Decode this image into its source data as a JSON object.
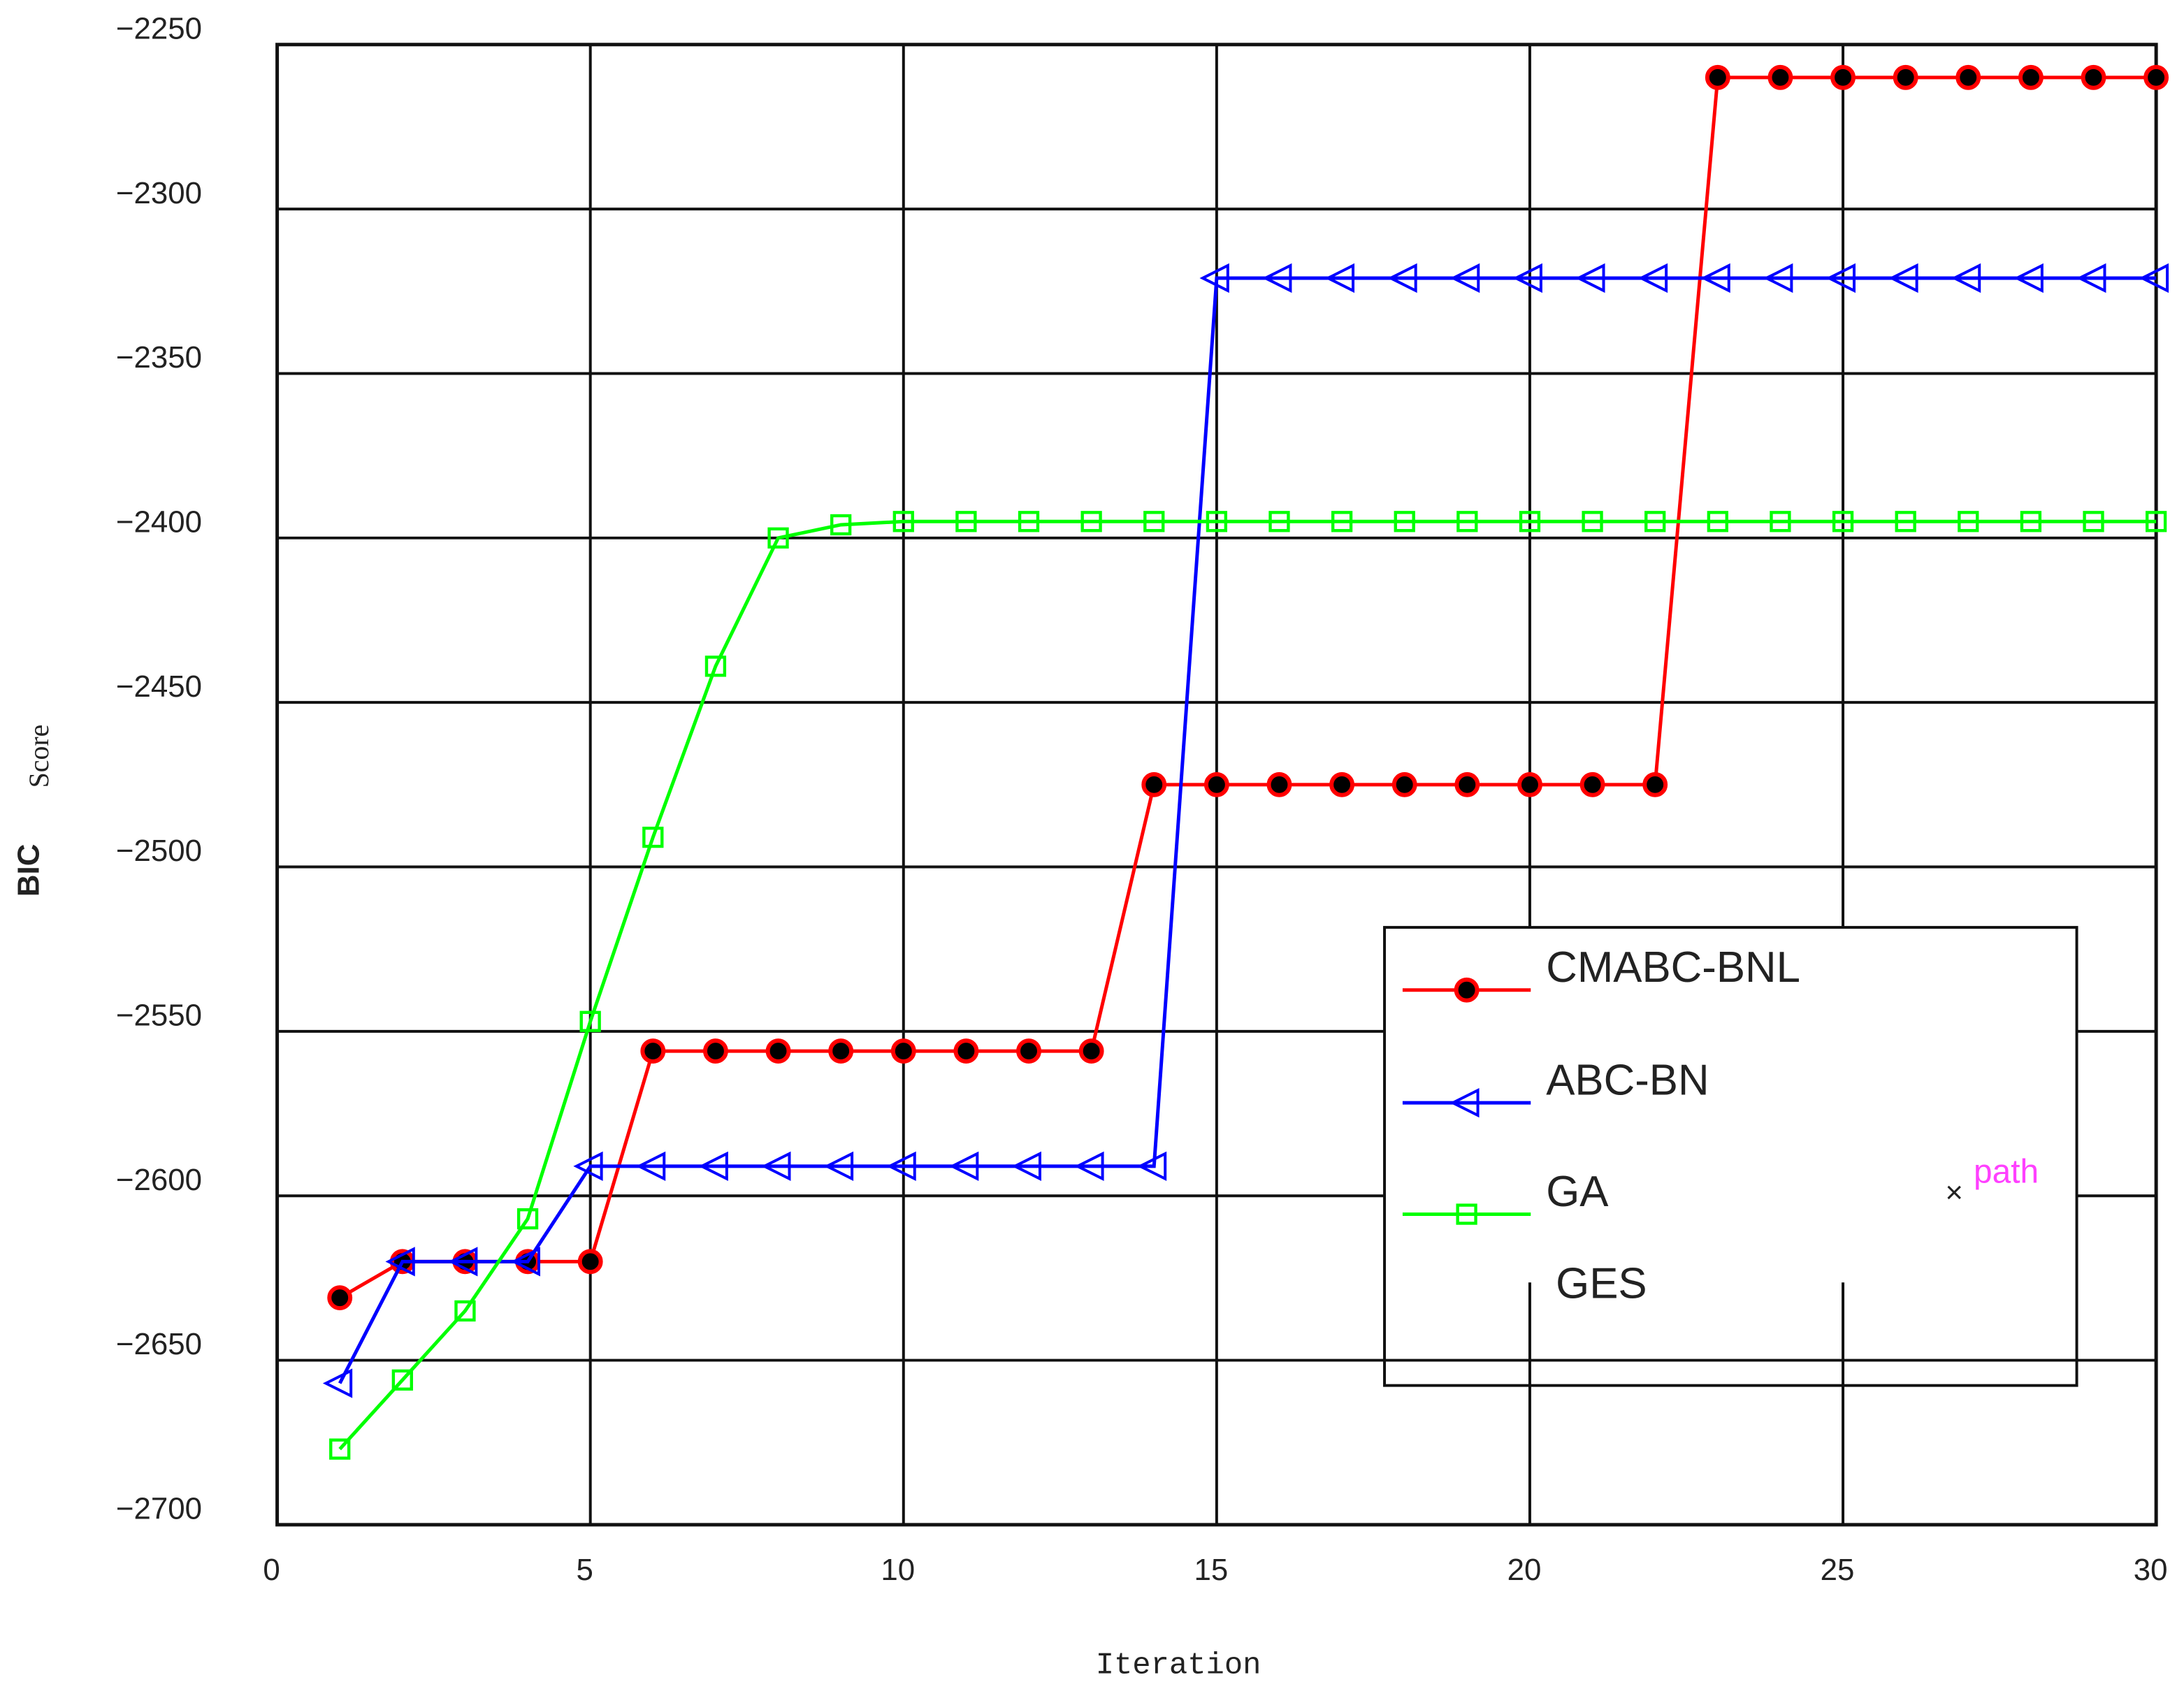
{
  "chart_data": {
    "type": "line",
    "xlabel": "Iteration",
    "ylabel": [
      "BIC",
      "Score"
    ],
    "x": [
      1,
      2,
      3,
      4,
      5,
      6,
      7,
      8,
      9,
      10,
      11,
      12,
      13,
      14,
      15,
      16,
      17,
      18,
      19,
      20,
      21,
      22,
      23,
      24,
      25,
      26,
      27,
      28,
      29,
      30
    ],
    "xlim": [
      0,
      30
    ],
    "xticks": [
      0,
      5,
      10,
      15,
      20,
      25,
      30
    ],
    "ylim": [
      -2700,
      -2250
    ],
    "yticks": [
      {
        "value": -2250,
        "label": "−2250"
      },
      {
        "value": -2300,
        "label": "−2300"
      },
      {
        "value": -2350,
        "label": "−2350"
      },
      {
        "value": -2400,
        "label": "−2400"
      },
      {
        "value": -2450,
        "label": "−2450"
      },
      {
        "value": -2500,
        "label": "−2500"
      },
      {
        "value": -2550,
        "label": "−2550"
      },
      {
        "value": -2600,
        "label": "−2600"
      },
      {
        "value": -2650,
        "label": "−2650"
      },
      {
        "value": -2700,
        "label": "−2700"
      }
    ],
    "grid": true,
    "legend": "lower right",
    "series": [
      {
        "name": "CMABC-BNL",
        "color": "#ff0000",
        "marker": "circle",
        "values": [
          -2631,
          -2620,
          -2620,
          -2620,
          -2620,
          -2556,
          -2556,
          -2556,
          -2556,
          -2556,
          -2556,
          -2556,
          -2556,
          -2475,
          -2475,
          -2475,
          -2475,
          -2475,
          -2475,
          -2475,
          -2475,
          -2475,
          -2260,
          -2260,
          -2260,
          -2260,
          -2260,
          -2260,
          -2260,
          -2260
        ]
      },
      {
        "name": "ABC-BN",
        "color": "#0000ff",
        "marker": "triangle-left",
        "values": [
          -2657,
          -2620,
          -2620,
          -2620,
          -2591,
          -2591,
          -2591,
          -2591,
          -2591,
          -2591,
          -2591,
          -2591,
          -2591,
          -2591,
          -2321,
          -2321,
          -2321,
          -2321,
          -2321,
          -2321,
          -2321,
          -2321,
          -2321,
          -2321,
          -2321,
          -2321,
          -2321,
          -2321,
          -2321,
          -2321
        ]
      },
      {
        "name": "GA",
        "color": "#00ff00",
        "marker": "square",
        "values": [
          -2677,
          -2656,
          -2635,
          -2607,
          -2547,
          -2491,
          -2439,
          -2400,
          -2396,
          -2395,
          -2395,
          -2395,
          -2395,
          -2395,
          -2395,
          -2395,
          -2395,
          -2395,
          -2395,
          -2395,
          -2395,
          -2395,
          -2395,
          -2395,
          -2395,
          -2395,
          -2395,
          -2395,
          -2395,
          -2395
        ]
      },
      {
        "name": "GES",
        "marker": "none",
        "values": [
          null,
          null,
          null,
          null,
          null,
          null,
          null,
          null,
          null,
          null,
          null,
          null,
          null,
          null,
          null,
          null,
          null,
          null,
          null,
          null,
          null,
          null,
          null,
          null,
          null,
          null,
          null,
          null,
          null,
          null
        ]
      }
    ],
    "annotation": {
      "marker": "×",
      "text": "path"
    }
  }
}
